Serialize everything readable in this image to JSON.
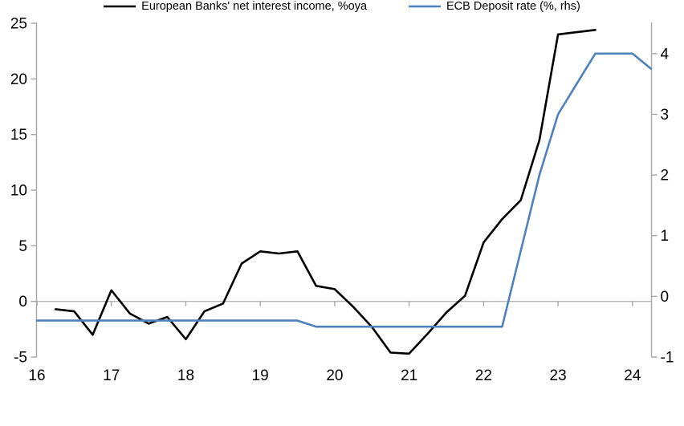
{
  "chart_data": {
    "type": "line",
    "title": "",
    "categories": [
      "16Q1",
      "16Q2",
      "16Q3",
      "16Q4",
      "17Q1",
      "17Q2",
      "17Q3",
      "17Q4",
      "18Q1",
      "18Q2",
      "18Q3",
      "18Q4",
      "19Q1",
      "19Q2",
      "19Q3",
      "19Q4",
      "20Q1",
      "20Q2",
      "20Q3",
      "20Q4",
      "21Q1",
      "21Q2",
      "21Q3",
      "21Q4",
      "22Q1",
      "22Q2",
      "22Q3",
      "22Q4",
      "23Q1",
      "23Q2",
      "23Q3",
      "23Q4",
      "24Q1",
      "24Q2"
    ],
    "x_axis": {
      "year_labels": [
        "16",
        "17",
        "18",
        "19",
        "20",
        "21",
        "22",
        "23",
        "24"
      ]
    },
    "left_axis": {
      "min": -5,
      "max": 25,
      "tick_labels": [
        "-5",
        "0",
        "5",
        "10",
        "15",
        "20",
        "25"
      ],
      "tick_values": [
        -5,
        0,
        5,
        10,
        15,
        20,
        25
      ]
    },
    "right_axis": {
      "min": -1,
      "max": 4.5,
      "tick_labels": [
        "-1",
        "0",
        "1",
        "2",
        "3",
        "4"
      ],
      "tick_values": [
        -1,
        0,
        1,
        2,
        3,
        4
      ]
    },
    "series": [
      {
        "name": "European Banks' net interest income, %oya",
        "axis": "left",
        "color": "#000000",
        "values": [
          null,
          -0.7,
          -0.9,
          -3.0,
          1.0,
          -1.1,
          -2.0,
          -1.4,
          -3.4,
          -0.9,
          -0.2,
          3.4,
          4.5,
          4.3,
          4.5,
          1.4,
          1.1,
          -0.5,
          -2.3,
          -4.6,
          -4.7,
          -2.9,
          -1.0,
          0.5,
          5.3,
          7.4,
          9.1,
          14.5,
          24.0,
          24.2,
          24.4,
          null,
          null,
          null
        ]
      },
      {
        "name": "ECB Deposit rate (%, rhs)",
        "axis": "right",
        "color": "#4F81BD",
        "values": [
          -0.4,
          -0.4,
          -0.4,
          -0.4,
          -0.4,
          -0.4,
          -0.4,
          -0.4,
          -0.4,
          -0.4,
          -0.4,
          -0.4,
          -0.4,
          -0.4,
          -0.4,
          -0.5,
          -0.5,
          -0.5,
          -0.5,
          -0.5,
          -0.5,
          -0.5,
          -0.5,
          -0.5,
          -0.5,
          -0.5,
          0.75,
          2.0,
          3.0,
          3.5,
          4.0,
          4.0,
          4.0,
          3.75
        ]
      }
    ],
    "legend_position": "bottom",
    "grid": "zero-line-only"
  },
  "colors": {
    "axis": "#a6a6a6",
    "zero_line": "#b6b6b6",
    "background": "#ffffff"
  }
}
